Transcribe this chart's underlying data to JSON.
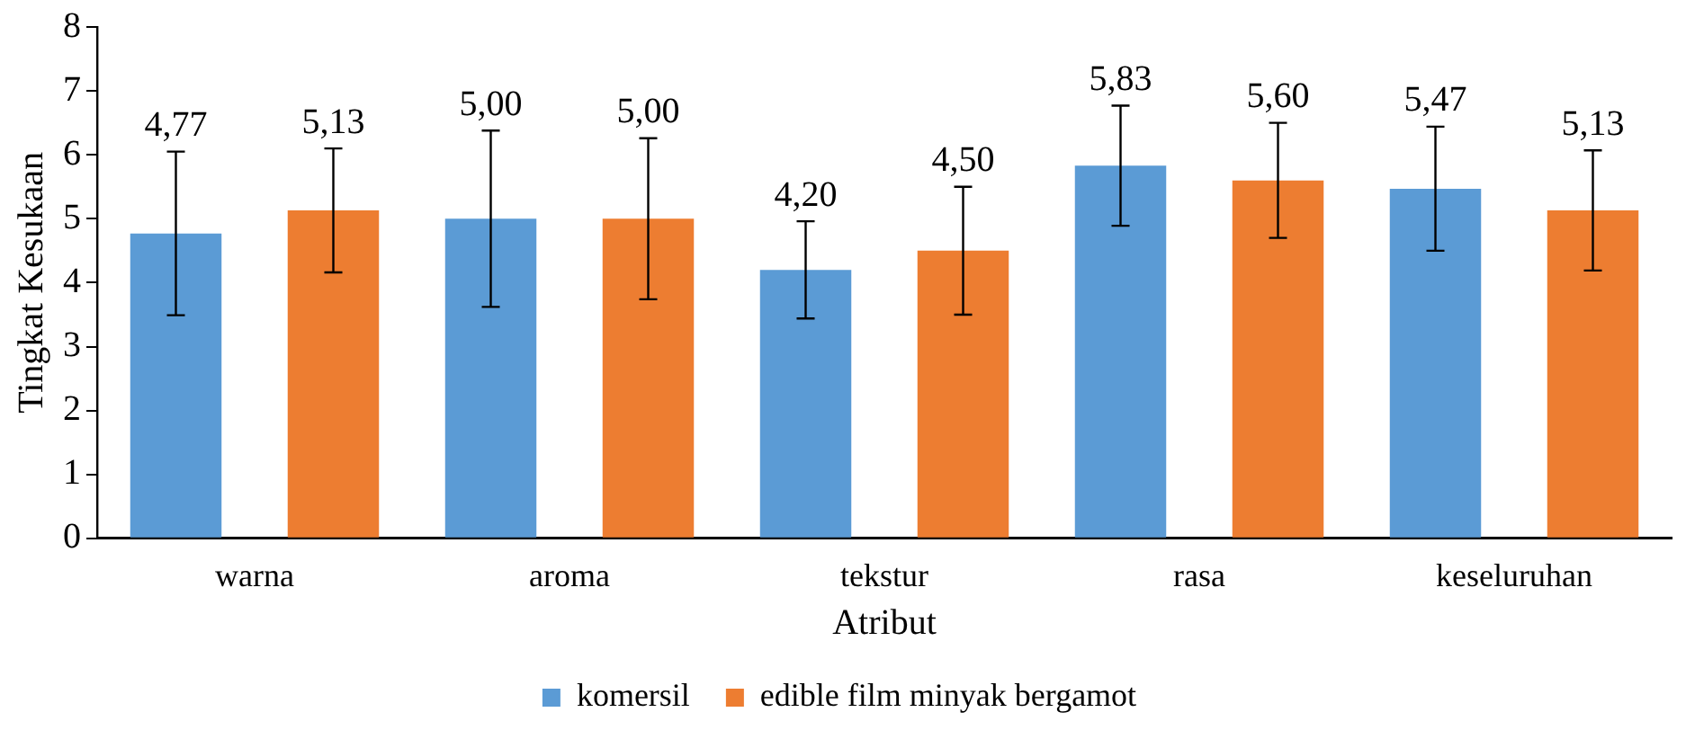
{
  "chart_data": {
    "type": "bar",
    "xlabel": "Atribut",
    "ylabel": "Tingkat Kesukaan",
    "categories": [
      "warna",
      "aroma",
      "tekstur",
      "rasa",
      "keseluruhan"
    ],
    "series": [
      {
        "name": "komersil",
        "color": "#5b9bd5",
        "values": [
          4.77,
          5.0,
          4.2,
          5.83,
          5.47
        ],
        "errors": [
          1.28,
          1.38,
          0.76,
          0.94,
          0.97
        ],
        "value_labels": [
          "4,77",
          "5,00",
          "4,20",
          "5,83",
          "5,47"
        ]
      },
      {
        "name": "edible film minyak bergamot",
        "color": "#ed7d31",
        "values": [
          5.13,
          5.0,
          4.5,
          5.6,
          5.13
        ],
        "errors": [
          0.97,
          1.26,
          1.0,
          0.9,
          0.94
        ],
        "value_labels": [
          "5,13",
          "5,00",
          "4,50",
          "5,60",
          "5,13"
        ]
      }
    ],
    "ylim": [
      0,
      8
    ],
    "yticks": [
      0,
      1,
      2,
      3,
      4,
      5,
      6,
      7,
      8
    ],
    "grid": false,
    "legend": "bottom"
  }
}
